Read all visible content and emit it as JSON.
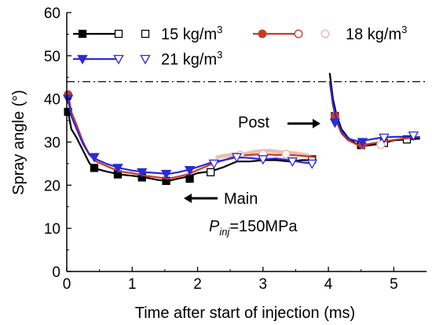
{
  "chart_data": {
    "type": "line",
    "xlabel": "Time after start of injection (ms)",
    "ylabel": "Spray angle (°)",
    "xlim": [
      0,
      5.5
    ],
    "ylim": [
      0,
      60
    ],
    "xticks": [
      0,
      1,
      2,
      3,
      4,
      5
    ],
    "yticks": [
      0,
      10,
      20,
      30,
      40,
      50,
      60
    ],
    "grid": false,
    "legend_position": "top",
    "reference_line": {
      "y": 44,
      "style": "dash-dot"
    },
    "annotations": {
      "main": "Main",
      "post": "Post",
      "pressure_P": "P",
      "pressure_sub": "inj",
      "pressure_rest": "=150MPa"
    },
    "series": [
      {
        "name": "15 kg/m",
        "name_sup": "3",
        "color": "#000000",
        "model_color": "#000000",
        "main_model": [
          [
            0.02,
            37
          ],
          [
            0.07,
            33
          ],
          [
            0.15,
            31
          ],
          [
            0.25,
            28
          ],
          [
            0.35,
            25
          ],
          [
            0.45,
            23.8
          ],
          [
            0.6,
            23.2
          ],
          [
            0.8,
            22.5
          ],
          [
            1.0,
            22.2
          ],
          [
            1.2,
            21.8
          ],
          [
            1.4,
            21.2
          ],
          [
            1.55,
            21
          ],
          [
            1.7,
            21.5
          ],
          [
            1.85,
            22
          ],
          [
            2.0,
            22.8
          ],
          [
            2.2,
            23.2
          ],
          [
            2.4,
            24.2
          ],
          [
            2.6,
            25.5
          ],
          [
            2.8,
            25.5
          ],
          [
            3.0,
            25.8
          ],
          [
            3.2,
            25.8
          ],
          [
            3.4,
            25.5
          ],
          [
            3.6,
            25.8
          ],
          [
            3.8,
            25.8
          ]
        ],
        "post_model": [
          [
            4.02,
            46
          ],
          [
            4.07,
            40
          ],
          [
            4.12,
            36.5
          ],
          [
            4.2,
            33
          ],
          [
            4.3,
            31
          ],
          [
            4.45,
            29.3
          ],
          [
            4.6,
            29.2
          ],
          [
            4.8,
            29.6
          ],
          [
            5.0,
            30.4
          ],
          [
            5.2,
            30.6
          ],
          [
            5.4,
            30.8
          ]
        ],
        "model_markers": [
          [
            0.02,
            37
          ],
          [
            0.42,
            24
          ],
          [
            0.78,
            22.5
          ],
          [
            1.15,
            21.8
          ],
          [
            1.52,
            21
          ],
          [
            1.88,
            21.5
          ],
          [
            4.1,
            36
          ],
          [
            4.5,
            29.3
          ]
        ],
        "exp_markers": [
          [
            2.2,
            23
          ],
          [
            3.75,
            26
          ],
          [
            4.85,
            29.8
          ],
          [
            5.2,
            30.6
          ]
        ]
      },
      {
        "name": "18 kg/m",
        "name_sup": "3",
        "color": "#c9392b",
        "model_color": "#c9392b",
        "exp_color": "#e6b8a8",
        "main_model": [
          [
            0.02,
            41
          ],
          [
            0.07,
            37
          ],
          [
            0.15,
            34
          ],
          [
            0.25,
            30
          ],
          [
            0.35,
            27
          ],
          [
            0.45,
            25.5
          ],
          [
            0.6,
            24.5
          ],
          [
            0.8,
            23.2
          ],
          [
            1.0,
            22.8
          ],
          [
            1.2,
            22.2
          ],
          [
            1.4,
            21.8
          ],
          [
            1.55,
            21.5
          ],
          [
            1.7,
            22
          ],
          [
            1.85,
            22.5
          ],
          [
            2.0,
            23.5
          ],
          [
            2.2,
            24.8
          ],
          [
            2.4,
            25.8
          ],
          [
            2.6,
            26.8
          ],
          [
            2.8,
            27
          ],
          [
            3.0,
            27.2
          ],
          [
            3.2,
            27
          ],
          [
            3.4,
            27
          ],
          [
            3.6,
            26.8
          ],
          [
            3.8,
            26.5
          ]
        ],
        "exp_band": [
          [
            2.3,
            26.5
          ],
          [
            2.5,
            27
          ],
          [
            2.7,
            27.2
          ],
          [
            2.9,
            27.8
          ],
          [
            3.1,
            28
          ],
          [
            3.3,
            27.6
          ],
          [
            3.5,
            27.4
          ],
          [
            3.7,
            26.8
          ]
        ],
        "post_model": [
          [
            4.02,
            44
          ],
          [
            4.07,
            38.5
          ],
          [
            4.12,
            35
          ],
          [
            4.2,
            32
          ],
          [
            4.3,
            30.4
          ],
          [
            4.45,
            29.3
          ],
          [
            4.6,
            29.5
          ],
          [
            4.8,
            30
          ],
          [
            5.0,
            30.5
          ],
          [
            5.2,
            30.9
          ],
          [
            5.4,
            31.2
          ]
        ],
        "model_markers": [
          [
            0.02,
            41
          ],
          [
            4.1,
            36
          ],
          [
            4.52,
            29.4
          ]
        ],
        "exp_markers": [
          [
            2.65,
            27
          ],
          [
            3.0,
            27.2
          ],
          [
            3.35,
            27.2
          ],
          [
            4.8,
            29.4
          ]
        ]
      },
      {
        "name": "21 kg/m",
        "name_sup": "3",
        "color": "#2b2bd6",
        "model_color": "#2b2bd6",
        "main_model": [
          [
            0.02,
            40
          ],
          [
            0.07,
            36
          ],
          [
            0.15,
            33
          ],
          [
            0.25,
            29.5
          ],
          [
            0.35,
            27
          ],
          [
            0.45,
            26
          ],
          [
            0.6,
            25
          ],
          [
            0.8,
            24
          ],
          [
            1.0,
            23.4
          ],
          [
            1.2,
            23
          ],
          [
            1.4,
            22.8
          ],
          [
            1.55,
            22.6
          ],
          [
            1.7,
            23
          ],
          [
            1.85,
            23.5
          ],
          [
            2.0,
            24.2
          ],
          [
            2.2,
            25.2
          ],
          [
            2.4,
            25.8
          ],
          [
            2.6,
            26.5
          ],
          [
            2.8,
            26.3
          ],
          [
            3.0,
            26
          ],
          [
            3.2,
            26.2
          ],
          [
            3.4,
            25.8
          ],
          [
            3.6,
            25.3
          ],
          [
            3.75,
            25
          ]
        ],
        "post_model": [
          [
            4.02,
            44
          ],
          [
            4.07,
            39
          ],
          [
            4.12,
            35.5
          ],
          [
            4.2,
            32.5
          ],
          [
            4.3,
            30.8
          ],
          [
            4.45,
            30.2
          ],
          [
            4.6,
            30.5
          ],
          [
            4.8,
            31
          ],
          [
            5.0,
            31.2
          ],
          [
            5.2,
            31.2
          ],
          [
            5.4,
            31.1
          ]
        ],
        "model_markers": [
          [
            0.02,
            40
          ],
          [
            0.42,
            26.5
          ],
          [
            0.78,
            24
          ],
          [
            1.15,
            23
          ],
          [
            1.52,
            22.6
          ],
          [
            1.88,
            23.5
          ],
          [
            4.1,
            34.5
          ],
          [
            4.52,
            30
          ]
        ],
        "exp_markers": [
          [
            2.25,
            25
          ],
          [
            2.6,
            26.5
          ],
          [
            3.0,
            26
          ],
          [
            3.45,
            25.5
          ],
          [
            3.75,
            25
          ],
          [
            4.85,
            31
          ],
          [
            5.3,
            31.5
          ]
        ]
      }
    ]
  }
}
